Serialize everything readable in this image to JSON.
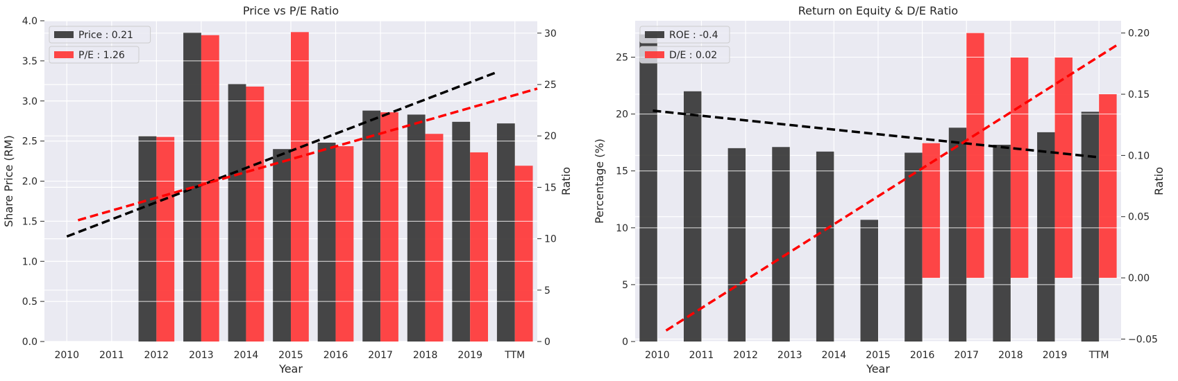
{
  "chart_data": [
    {
      "type": "bar",
      "title": "Price vs P/E Ratio",
      "xlabel": "Year",
      "ylabel": "Share Price (RM)",
      "y2label": "Ratio",
      "categories": [
        "2010",
        "2011",
        "2012",
        "2013",
        "2014",
        "2015",
        "2016",
        "2017",
        "2018",
        "2019",
        "TTM"
      ],
      "ylim": [
        0,
        4.0
      ],
      "y2lim": [
        0,
        31.2
      ],
      "yticks": [
        "0.0",
        "0.5",
        "1.0",
        "1.5",
        "2.0",
        "2.5",
        "3.0",
        "3.5",
        "4.0"
      ],
      "yticks_values": [
        0,
        0.5,
        1.0,
        1.5,
        2.0,
        2.5,
        3.0,
        3.5,
        4.0
      ],
      "y2ticks": [
        "0",
        "5",
        "10",
        "15",
        "20",
        "25",
        "30"
      ],
      "y2ticks_values": [
        0,
        5,
        10,
        15,
        20,
        25,
        30
      ],
      "series": [
        {
          "name": "Price : 0.21",
          "axis": "left",
          "color": "#333333",
          "values": [
            0,
            0,
            2.56,
            3.85,
            3.21,
            2.4,
            2.48,
            2.88,
            2.83,
            2.74,
            2.72
          ]
        },
        {
          "name": "P/E : 1.26",
          "axis": "right",
          "color": "#ff3333",
          "values": [
            0,
            0,
            19.9,
            29.8,
            24.8,
            30.1,
            19.0,
            22.3,
            20.2,
            18.4,
            17.1
          ]
        }
      ],
      "trendlines": [
        {
          "series": "Price",
          "axis": "left",
          "color": "#000000",
          "from": [
            0,
            1.31
          ],
          "to": [
            9.6,
            3.36
          ]
        },
        {
          "series": "P/E",
          "axis": "right",
          "color": "#ff0000",
          "from": [
            0.25,
            11.8
          ],
          "to": [
            10.5,
            24.6
          ]
        }
      ],
      "legend": "top-left",
      "grid": true
    },
    {
      "type": "bar",
      "title": "Return on Equity & D/E Ratio",
      "xlabel": "Year",
      "ylabel": "Percentage (%)",
      "y2label": "Ratio",
      "categories": [
        "2010",
        "2011",
        "2012",
        "2013",
        "2014",
        "2015",
        "2016",
        "2017",
        "2018",
        "2019",
        "TTM"
      ],
      "ylim": [
        0,
        28.2
      ],
      "y2lim": [
        -0.052,
        0.21
      ],
      "yticks": [
        "0",
        "5",
        "10",
        "15",
        "20",
        "25"
      ],
      "yticks_values": [
        0,
        5,
        10,
        15,
        20,
        25
      ],
      "y2ticks": [
        "−0.05",
        "0.00",
        "0.05",
        "0.10",
        "0.15",
        "0.20"
      ],
      "y2ticks_values": [
        -0.05,
        0,
        0.05,
        0.1,
        0.15,
        0.2
      ],
      "series": [
        {
          "name": "ROE : -0.4",
          "axis": "left",
          "color": "#333333",
          "values": [
            27.0,
            22.0,
            17.0,
            17.1,
            16.7,
            10.7,
            16.6,
            18.8,
            17.3,
            18.4,
            20.2
          ]
        },
        {
          "name": "D/E : 0.02",
          "axis": "right",
          "color": "#ff3333",
          "values": [
            0,
            0,
            0,
            0,
            0,
            0,
            0.11,
            0.2,
            0.18,
            0.18,
            0.15
          ]
        }
      ],
      "trendlines": [
        {
          "series": "ROE",
          "axis": "left",
          "color": "#000000",
          "from": [
            -0.1,
            20.3
          ],
          "to": [
            10,
            16.2
          ]
        },
        {
          "series": "D/E",
          "axis": "right",
          "color": "#ff0000",
          "from": [
            0.2,
            -0.043
          ],
          "to": [
            10.4,
            0.19
          ]
        }
      ],
      "legend": "top-left",
      "grid": true
    }
  ]
}
